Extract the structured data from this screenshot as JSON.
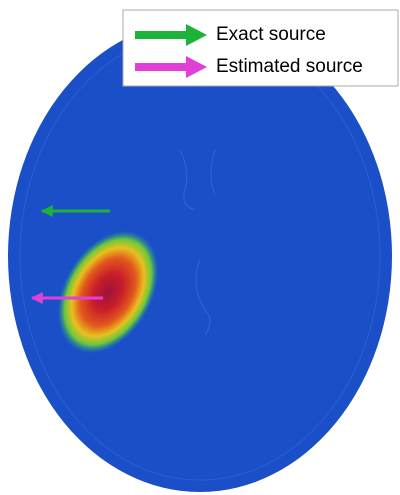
{
  "legend": {
    "items": [
      {
        "label": "Exact source"
      },
      {
        "label": "Estimated source"
      }
    ]
  }
}
